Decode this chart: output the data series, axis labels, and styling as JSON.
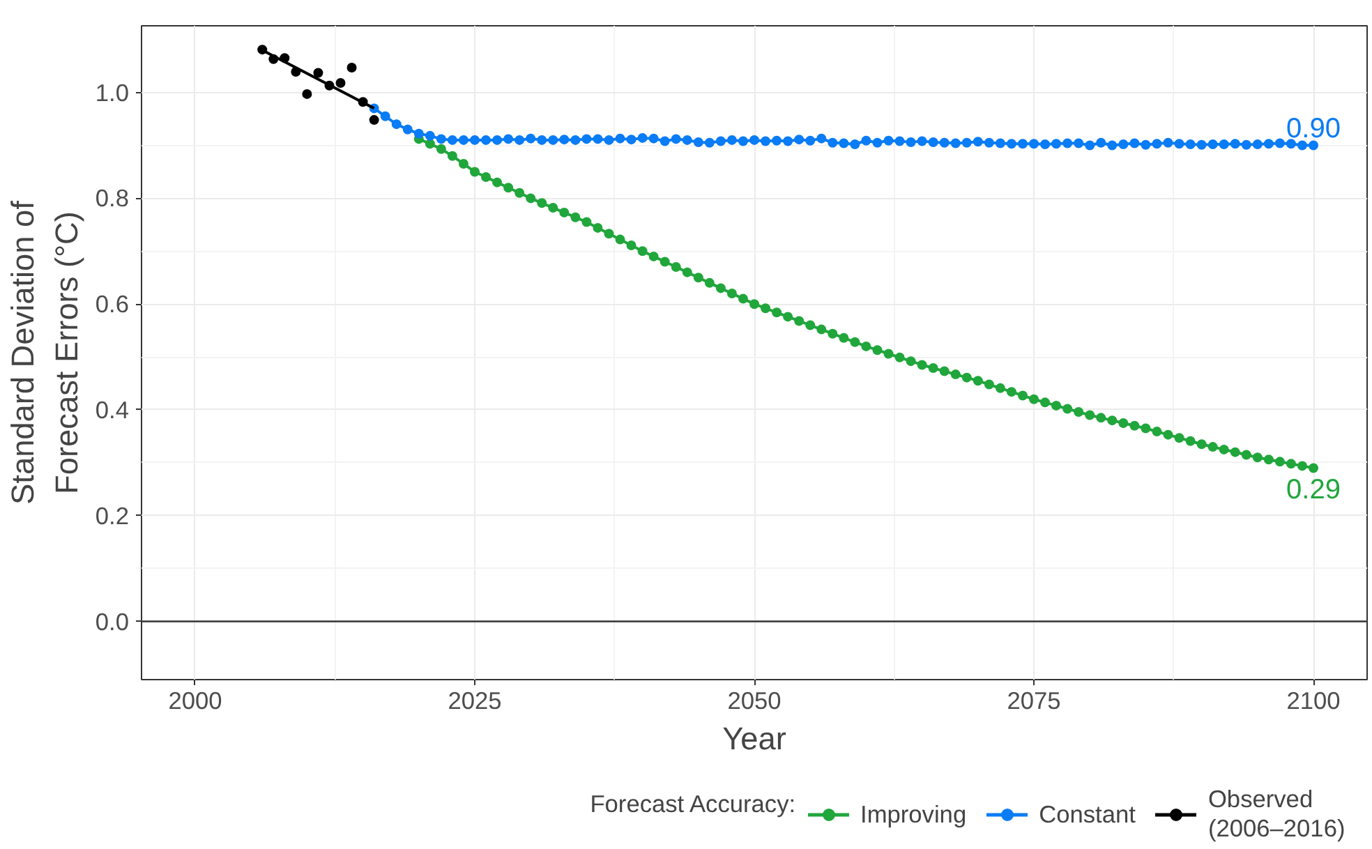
{
  "chart_data": {
    "type": "line",
    "xlabel": "Year",
    "ylabel": "Standard Deviation of\nForecast Errors (°C)",
    "legend_title": "Forecast Accuracy:",
    "legend": "bottom",
    "grid": true,
    "marker": "circle",
    "line_style": "solid",
    "xlim": [
      1995.2,
      2104.8
    ],
    "xticks": [
      2000,
      2025,
      2050,
      2075,
      2100
    ],
    "ylim": [
      -0.11,
      1.126
    ],
    "yticks": [
      {
        "value": 0,
        "label": "0.0"
      },
      {
        "value": 0.2,
        "label": "0.2"
      },
      {
        "value": 0.4,
        "label": "0.4"
      },
      {
        "value": 0.6,
        "label": "0.6"
      },
      {
        "value": 0.8,
        "label": "0.8"
      },
      {
        "value": 1,
        "label": "1.0"
      }
    ],
    "ref_lines": [
      {
        "axis": "y",
        "value": 0,
        "color": "#333333"
      }
    ],
    "series": [
      {
        "name": "Improving",
        "color": "#21a63c",
        "x": [
          2020,
          2021,
          2022,
          2023,
          2024,
          2025,
          2026,
          2027,
          2028,
          2029,
          2030,
          2031,
          2032,
          2033,
          2034,
          2035,
          2036,
          2037,
          2038,
          2039,
          2040,
          2041,
          2042,
          2043,
          2044,
          2045,
          2046,
          2047,
          2048,
          2049,
          2050,
          2051,
          2052,
          2053,
          2054,
          2055,
          2056,
          2057,
          2058,
          2059,
          2060,
          2061,
          2062,
          2063,
          2064,
          2065,
          2066,
          2067,
          2068,
          2069,
          2070,
          2071,
          2072,
          2073,
          2074,
          2075,
          2076,
          2077,
          2078,
          2079,
          2080,
          2081,
          2082,
          2083,
          2084,
          2085,
          2086,
          2087,
          2088,
          2089,
          2090,
          2091,
          2092,
          2093,
          2094,
          2095,
          2096,
          2097,
          2098,
          2099,
          2100
        ],
        "values": [
          0.912,
          0.903,
          0.893,
          0.88,
          0.865,
          0.85,
          0.84,
          0.83,
          0.82,
          0.81,
          0.8,
          0.791,
          0.782,
          0.773,
          0.764,
          0.755,
          0.744,
          0.733,
          0.722,
          0.711,
          0.7,
          0.69,
          0.68,
          0.67,
          0.66,
          0.65,
          0.64,
          0.63,
          0.62,
          0.61,
          0.6,
          0.592,
          0.584,
          0.576,
          0.568,
          0.56,
          0.552,
          0.544,
          0.536,
          0.528,
          0.52,
          0.513,
          0.506,
          0.499,
          0.492,
          0.485,
          0.479,
          0.473,
          0.467,
          0.461,
          0.455,
          0.448,
          0.441,
          0.434,
          0.427,
          0.42,
          0.414,
          0.408,
          0.402,
          0.396,
          0.39,
          0.385,
          0.38,
          0.375,
          0.37,
          0.365,
          0.359,
          0.353,
          0.347,
          0.341,
          0.335,
          0.33,
          0.325,
          0.32,
          0.315,
          0.31,
          0.306,
          0.302,
          0.298,
          0.294,
          0.29
        ],
        "value_labels": [
          null,
          null,
          null,
          null,
          null,
          null,
          null,
          null,
          null,
          null,
          null,
          null,
          null,
          null,
          null,
          null,
          null,
          null,
          null,
          null,
          null,
          null,
          null,
          null,
          null,
          null,
          null,
          null,
          null,
          null,
          null,
          null,
          null,
          null,
          null,
          null,
          null,
          null,
          null,
          null,
          null,
          null,
          null,
          null,
          null,
          null,
          null,
          null,
          null,
          null,
          null,
          null,
          null,
          null,
          null,
          null,
          null,
          null,
          null,
          null,
          null,
          null,
          null,
          null,
          null,
          null,
          null,
          null,
          null,
          null,
          null,
          null,
          null,
          null,
          null,
          null,
          null,
          null,
          null,
          null,
          "0.29"
        ]
      },
      {
        "name": "Constant",
        "color": "#0a7cf5",
        "x": [
          2016,
          2017,
          2018,
          2019,
          2020,
          2021,
          2022,
          2023,
          2024,
          2025,
          2026,
          2027,
          2028,
          2029,
          2030,
          2031,
          2032,
          2033,
          2034,
          2035,
          2036,
          2037,
          2038,
          2039,
          2040,
          2041,
          2042,
          2043,
          2044,
          2045,
          2046,
          2047,
          2048,
          2049,
          2050,
          2051,
          2052,
          2053,
          2054,
          2055,
          2056,
          2057,
          2058,
          2059,
          2060,
          2061,
          2062,
          2063,
          2064,
          2065,
          2066,
          2067,
          2068,
          2069,
          2070,
          2071,
          2072,
          2073,
          2074,
          2075,
          2076,
          2077,
          2078,
          2079,
          2080,
          2081,
          2082,
          2083,
          2084,
          2085,
          2086,
          2087,
          2088,
          2089,
          2090,
          2091,
          2092,
          2093,
          2094,
          2095,
          2096,
          2097,
          2098,
          2099,
          2100
        ],
        "values": [
          0.97,
          0.955,
          0.94,
          0.93,
          0.922,
          0.918,
          0.912,
          0.91,
          0.91,
          0.91,
          0.91,
          0.91,
          0.912,
          0.91,
          0.913,
          0.91,
          0.91,
          0.911,
          0.91,
          0.912,
          0.912,
          0.91,
          0.913,
          0.911,
          0.914,
          0.913,
          0.908,
          0.912,
          0.91,
          0.906,
          0.905,
          0.908,
          0.91,
          0.908,
          0.91,
          0.908,
          0.909,
          0.908,
          0.911,
          0.909,
          0.913,
          0.905,
          0.904,
          0.902,
          0.909,
          0.905,
          0.909,
          0.908,
          0.906,
          0.908,
          0.906,
          0.905,
          0.904,
          0.905,
          0.907,
          0.905,
          0.904,
          0.903,
          0.903,
          0.903,
          0.902,
          0.903,
          0.904,
          0.904,
          0.9,
          0.905,
          0.9,
          0.902,
          0.904,
          0.901,
          0.903,
          0.905,
          0.903,
          0.902,
          0.901,
          0.902,
          0.902,
          0.903,
          0.901,
          0.902,
          0.903,
          0.904,
          0.903,
          0.9,
          0.9
        ],
        "value_labels": [
          null,
          null,
          null,
          null,
          null,
          null,
          null,
          null,
          null,
          null,
          null,
          null,
          null,
          null,
          null,
          null,
          null,
          null,
          null,
          null,
          null,
          null,
          null,
          null,
          null,
          null,
          null,
          null,
          null,
          null,
          null,
          null,
          null,
          null,
          null,
          null,
          null,
          null,
          null,
          null,
          null,
          null,
          null,
          null,
          null,
          null,
          null,
          null,
          null,
          null,
          null,
          null,
          null,
          null,
          null,
          null,
          null,
          null,
          null,
          null,
          null,
          null,
          null,
          null,
          null,
          null,
          null,
          null,
          null,
          null,
          null,
          null,
          null,
          null,
          null,
          null,
          null,
          null,
          null,
          null,
          null,
          null,
          null,
          null,
          "0.90"
        ]
      },
      {
        "name": "Observed\n(2006–2016)",
        "color": "#000000",
        "type": "scatter",
        "x": [
          2006,
          2007,
          2008,
          2009,
          2010,
          2011,
          2012,
          2013,
          2014,
          2015,
          2016
        ],
        "values": [
          1.081,
          1.063,
          1.065,
          1.039,
          0.997,
          1.037,
          1.013,
          1.018,
          1.047,
          0.982,
          0.948
        ]
      },
      {
        "color": "#000000",
        "marker": "none",
        "x": [
          2006,
          2016
        ],
        "values": [
          1.08,
          0.97
        ]
      }
    ]
  }
}
